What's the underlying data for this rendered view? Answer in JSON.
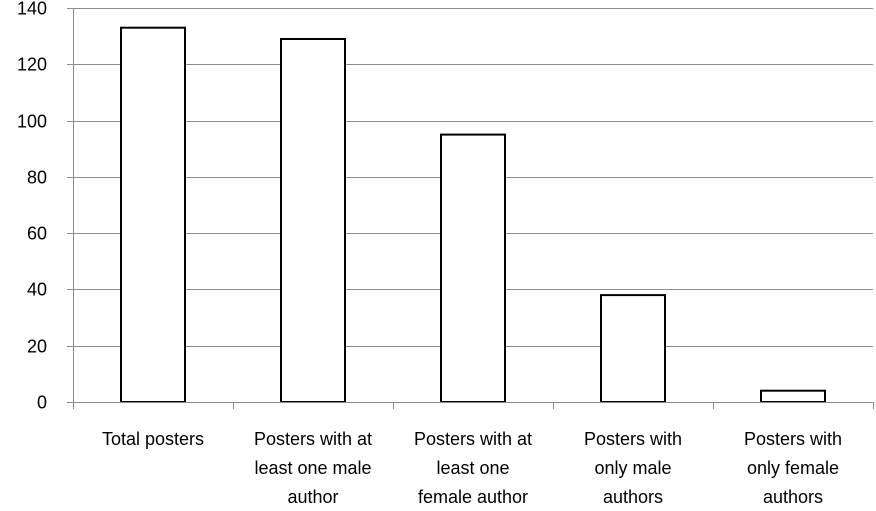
{
  "chart_data": {
    "type": "bar",
    "title": "",
    "xlabel": "",
    "ylabel": "",
    "categories": [
      [
        "Total posters"
      ],
      [
        "Posters with at",
        "least one male",
        "author"
      ],
      [
        "Posters with at",
        "least one",
        "female author"
      ],
      [
        "Posters with",
        "only male",
        "authors"
      ],
      [
        "Posters with",
        "only female",
        "authors"
      ]
    ],
    "values": [
      133,
      129,
      95,
      38,
      4
    ],
    "ylim": [
      0,
      140
    ],
    "yticks": [
      0,
      20,
      40,
      60,
      80,
      100,
      120,
      140
    ],
    "grid": true,
    "legend": "none",
    "colors": {
      "bar_fill": "#ffffff",
      "bar_stroke": "#000000",
      "grid": "#8c8c8c"
    }
  }
}
